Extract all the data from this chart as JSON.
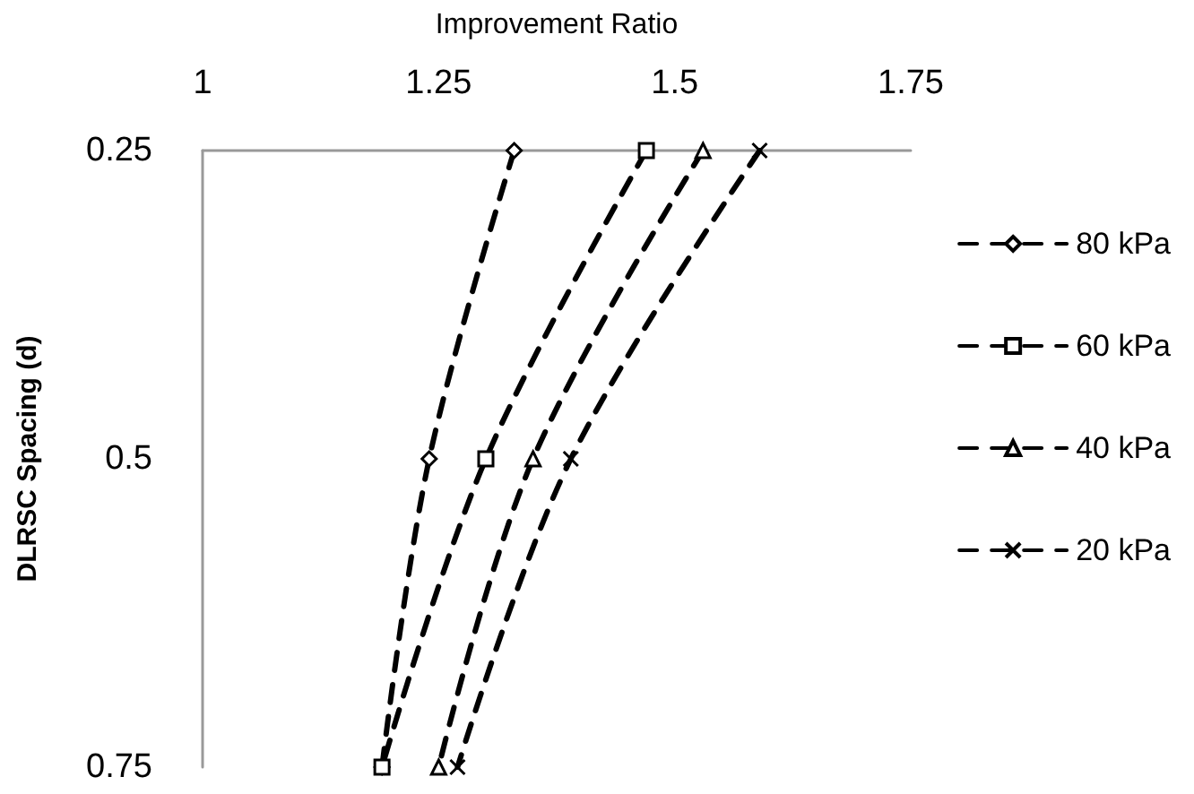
{
  "chart_data": {
    "type": "line",
    "xlabel": "Improvement Ratio",
    "ylabel": "DLRSC Spacing (d)",
    "xlim": [
      1,
      1.75
    ],
    "xticks": [
      1,
      1.25,
      1.5,
      1.75
    ],
    "ylim": [
      0.75,
      0.25
    ],
    "yticks": [
      0.25,
      0.5,
      0.75
    ],
    "legend": "right",
    "line_style": "dashed",
    "grid": false,
    "series": [
      {
        "name": "80 kPa",
        "color": "#000000",
        "marker": "diamond",
        "x": [
          1.33,
          1.24,
          1.19
        ],
        "values": [
          0.25,
          0.5,
          0.75
        ]
      },
      {
        "name": "60 kPa",
        "color": "#000000",
        "marker": "square",
        "x": [
          1.47,
          1.3,
          1.19
        ],
        "values": [
          0.25,
          0.5,
          0.75
        ]
      },
      {
        "name": "40 kPa",
        "color": "#000000",
        "marker": "triangle",
        "x": [
          1.53,
          1.35,
          1.25
        ],
        "values": [
          0.25,
          0.5,
          0.75
        ]
      },
      {
        "name": "20 kPa",
        "color": "#000000",
        "marker": "cross",
        "x": [
          1.59,
          1.39,
          1.27
        ],
        "values": [
          0.25,
          0.5,
          0.75
        ]
      }
    ]
  }
}
